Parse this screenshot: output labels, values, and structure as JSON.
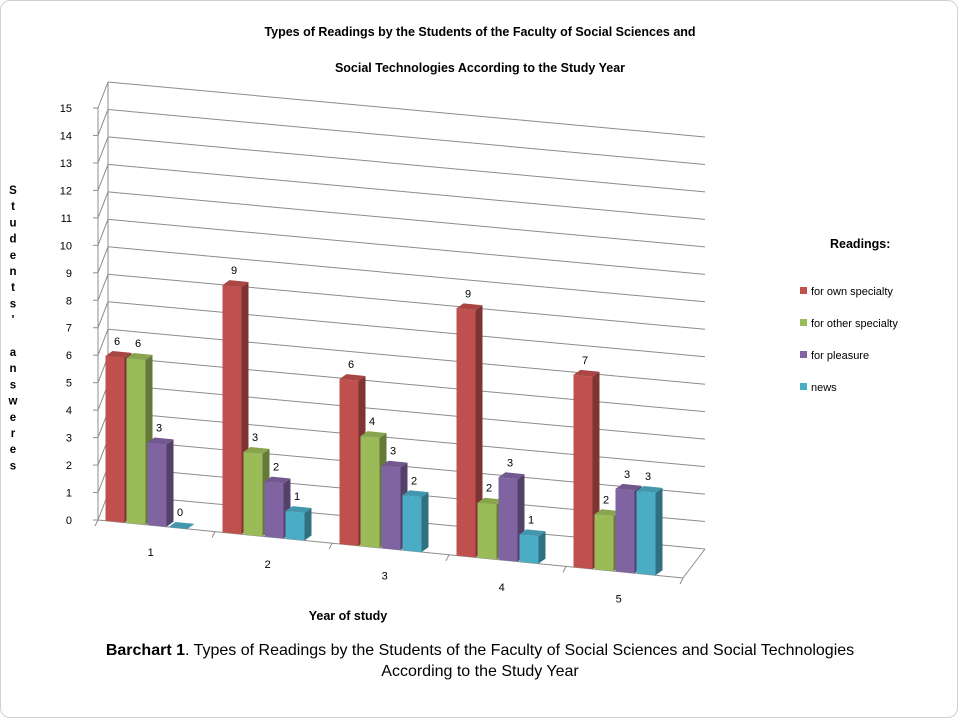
{
  "chart_data": {
    "type": "bar",
    "title_line1": "Types of Readings by the Students of the Faculty of Social Sciences and",
    "title_line2": "Social Technologies  According to the Study Year",
    "xlabel": "Year of study",
    "ylabel": "Students' answeres",
    "ylim": [
      0,
      15
    ],
    "yticks": [
      0,
      1,
      2,
      3,
      4,
      5,
      6,
      7,
      8,
      9,
      10,
      11,
      12,
      13,
      14,
      15
    ],
    "categories": [
      "1",
      "2",
      "3",
      "4",
      "5"
    ],
    "legend_title": "Readings:",
    "legend_position": "right",
    "grid": true,
    "series": [
      {
        "name": "for own specialty",
        "values": [
          6,
          9,
          6,
          9,
          7
        ],
        "color": "#C0504D"
      },
      {
        "name": "for other specialty",
        "values": [
          6,
          3,
          4,
          2,
          2
        ],
        "color": "#9BBB59"
      },
      {
        "name": "for pleasure",
        "values": [
          3,
          2,
          3,
          3,
          3
        ],
        "color": "#8064A2"
      },
      {
        "name": "news",
        "values": [
          0,
          1,
          2,
          1,
          3
        ],
        "color": "#4BACC6"
      }
    ]
  },
  "caption": {
    "label": "Barchart 1",
    "text": ". Types of Readings  by the Students of the Faculty of Social Sciences and Social Technologies According to the Study Year"
  }
}
